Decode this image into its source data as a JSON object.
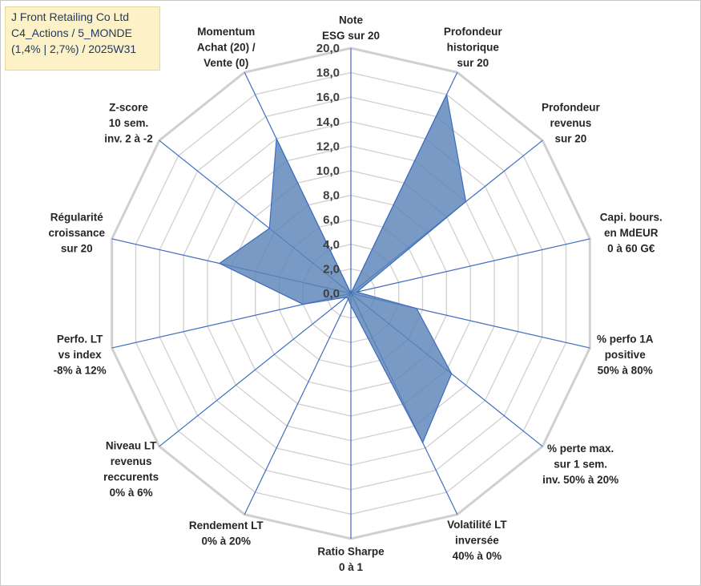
{
  "header": {
    "lines": [
      "J Front Retailing Co Ltd",
      "C4_Actions / 5_MONDE",
      "(1,4% | 2,7%) / 2025W31"
    ]
  },
  "colors": {
    "fill": "#5b84b7",
    "spoke": "#3d6cc0",
    "grid": "#d0d0d0",
    "header_bg": "#fdf1c7",
    "header_text": "#1f3a66"
  },
  "chart_data": {
    "type": "radar",
    "range": [
      0,
      20
    ],
    "ticks": [
      "0,0",
      "2,0",
      "4,0",
      "6,0",
      "8,0",
      "10,0",
      "12,0",
      "14,0",
      "16,0",
      "18,0",
      "20,0"
    ],
    "axes": [
      {
        "label": [
          "Note",
          "ESG sur 20"
        ],
        "value": 0
      },
      {
        "label": [
          "Profondeur",
          "historique",
          "sur 20"
        ],
        "value": 18
      },
      {
        "label": [
          "Profondeur",
          "revenus",
          "sur 20"
        ],
        "value": 12
      },
      {
        "label": [
          "Capi. bours.",
          "en MdEUR",
          "0 à 60 G€"
        ],
        "value": 0.5
      },
      {
        "label": [
          "% perfo 1A",
          "positive",
          "50% à 80%"
        ],
        "value": 5.5
      },
      {
        "label": [
          "% perte max.",
          "sur 1 sem.",
          "inv. 50% à 20%"
        ],
        "value": 10.5
      },
      {
        "label": [
          "Volatilité LT",
          "inversée",
          "40% à 0%"
        ],
        "value": 13.5
      },
      {
        "label": [
          "Ratio Sharpe",
          "0 à 1"
        ],
        "value": 1
      },
      {
        "label": [
          "Rendement LT",
          "0% à 20%"
        ],
        "value": 0.5
      },
      {
        "label": [
          "Niveau LT",
          "revenus",
          "reccurents",
          "0% à 6%"
        ],
        "value": 0.5
      },
      {
        "label": [
          "Perfo. LT",
          "vs index",
          "-8% à 12%"
        ],
        "value": 4
      },
      {
        "label": [
          "Régularité",
          "croissance",
          "sur 20"
        ],
        "value": 11
      },
      {
        "label": [
          "Z-score",
          "10 sem.",
          "inv. 2 à -2"
        ],
        "value": 8.5
      },
      {
        "label": [
          "Momentum",
          "Achat (20) /",
          "Vente (0)"
        ],
        "value": 14
      }
    ]
  }
}
